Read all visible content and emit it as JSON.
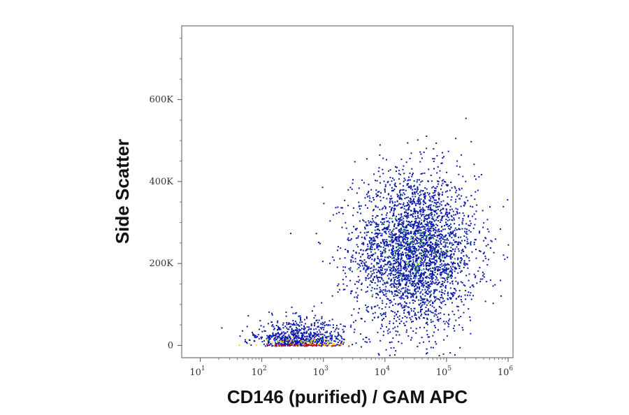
{
  "chart_data": {
    "type": "scatter",
    "plot_style": "flow-cytometry density dot plot",
    "xlabel": "CD146 (purified) / GAM APC",
    "ylabel": "Side Scatter",
    "x_scale": "log",
    "xlim": [
      5,
      1200000
    ],
    "ylim": [
      -30000,
      780000
    ],
    "x_ticks": [
      {
        "base": "10",
        "exp": "1",
        "value": 10
      },
      {
        "base": "10",
        "exp": "2",
        "value": 100
      },
      {
        "base": "10",
        "exp": "3",
        "value": 1000
      },
      {
        "base": "10",
        "exp": "4",
        "value": 10000
      },
      {
        "base": "10",
        "exp": "5",
        "value": 100000
      },
      {
        "base": "10",
        "exp": "6",
        "value": 1000000
      }
    ],
    "y_ticks": [
      {
        "label": "0",
        "value": 0
      },
      {
        "label": "200K",
        "value": 200000
      },
      {
        "label": "400K",
        "value": 400000
      },
      {
        "label": "600K",
        "value": 600000
      }
    ],
    "density_colors": {
      "low": "#0a1aa8",
      "medium": "#2fb52f",
      "high": "#f0d000",
      "higher": "#ff7a00",
      "highest": "#e00000"
    },
    "clusters": [
      {
        "name": "main population",
        "x_center": 30000,
        "y_center": 230000,
        "count": 3200,
        "density": "low"
      },
      {
        "name": "main population core",
        "x_center": 30000,
        "y_center": 230000,
        "count": 90,
        "density": "medium"
      },
      {
        "name": "low population",
        "x_center": 400,
        "y_center": 10000,
        "count": 700,
        "density": "low"
      },
      {
        "name": "low population core",
        "x_center": 500,
        "y_center": 2000,
        "count": 60,
        "density": "high"
      },
      {
        "name": "low population peak",
        "x_center": 500,
        "y_center": 1000,
        "count": 40,
        "density": "highest"
      }
    ],
    "grid": false,
    "legend": "none"
  }
}
